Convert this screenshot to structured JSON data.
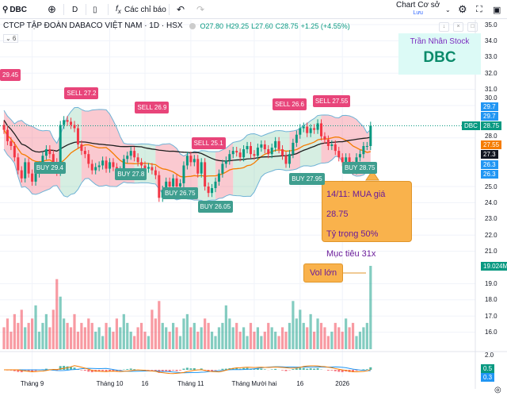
{
  "toolbar": {
    "symbol": "DBC",
    "interval": "D",
    "indicators_label": "Các chỉ báo",
    "layout_name": "Chart Cơ sở",
    "layout_status": "Lưu"
  },
  "legend": {
    "title": "CTCP TẬP ĐOÀN DABACO VIỆT NAM · 1D · HSX",
    "open": "O27.80",
    "high": "H29.25",
    "low": "L27.60",
    "close": "C28.75",
    "change": "+1.25 (+4.55%)",
    "indicator_count": "⌄ 6"
  },
  "brand": {
    "name": "Trần Nhân Stock",
    "ticker": "DBC"
  },
  "note": {
    "line1": "14/11: MUA giá 28.75",
    "line2": "Tỷ trọng 50%",
    "line3": "Mục tiêu 31x"
  },
  "vol_note": "Vol lớn",
  "price_axis": [
    "35.0",
    "34.0",
    "33.0",
    "32.0",
    "31.0",
    "30.0",
    "28.0",
    "25.0",
    "24.0",
    "23.0",
    "22.0",
    "21.0",
    "19.0",
    "18.0",
    "17.0",
    "16.0"
  ],
  "axis_tags": [
    {
      "text": "29.7",
      "price": 29.9,
      "color": "#2196f3"
    },
    {
      "text": "29.7",
      "price": 29.3,
      "color": "#2196f3"
    },
    {
      "text": "28.75",
      "price": 28.75,
      "color": "#089981",
      "symbol": "DBC"
    },
    {
      "text": "27.55",
      "price": 27.55,
      "color": "#f57c00"
    },
    {
      "text": "27.3",
      "price": 26.95,
      "color": "#131722"
    },
    {
      "text": "26.3",
      "price": 26.3,
      "color": "#2196f3"
    },
    {
      "text": "26.3",
      "price": 25.75,
      "color": "#2196f3"
    }
  ],
  "volume_tag": "19.024M",
  "macd_axis": {
    "top": "2.0",
    "tag1": "0.5",
    "tag2": "0.3"
  },
  "x_axis": [
    {
      "label": "Tháng 9",
      "i": 8
    },
    {
      "label": "Tháng 10",
      "i": 30
    },
    {
      "label": "16",
      "i": 40
    },
    {
      "label": "Tháng 11",
      "i": 53
    },
    {
      "label": "Tháng Mười hai",
      "i": 71
    },
    {
      "label": "16",
      "i": 84
    },
    {
      "label": "2026",
      "i": 96
    }
  ],
  "colors": {
    "up": "#089981",
    "down": "#f23645",
    "sell": "#e8457a",
    "buy": "#3f9e8f",
    "ma_short": "#f57c00",
    "ma_long": "#1e1e1e",
    "band": "#6fb3d6"
  },
  "chart_data": {
    "type": "candlestick",
    "closes": [
      28.5,
      27.8,
      27.5,
      26.8,
      26.0,
      25.5,
      26.5,
      25.8,
      25.3,
      25.8,
      26.3,
      26.9,
      27.3,
      27.0,
      26.5,
      25.9,
      28.8,
      29.1,
      29.0,
      28.8,
      28.6,
      27.6,
      27.2,
      27.0,
      26.4,
      26.0,
      26.2,
      26.3,
      26.6,
      26.1,
      26.5,
      26.2,
      25.8,
      26.0,
      26.7,
      26.9,
      27.2,
      26.8,
      26.5,
      26.3,
      26.1,
      26.2,
      26.0,
      25.7,
      24.3,
      24.8,
      25.3,
      25.0,
      25.5,
      25.0,
      25.2,
      26.3,
      26.9,
      26.5,
      26.7,
      25.8,
      26.5,
      25.0,
      24.6,
      24.9,
      25.3,
      25.8,
      26.4,
      26.6,
      27.0,
      27.2,
      27.1,
      26.8,
      27.3,
      27.5,
      27.0,
      26.9,
      27.4,
      27.6,
      27.3,
      27.0,
      27.4,
      27.8,
      27.3,
      26.9,
      26.4,
      27.0,
      27.7,
      28.2,
      28.6,
      28.7,
      28.3,
      28.6,
      28.5,
      28.9,
      28.1,
      27.9,
      27.5,
      27.6,
      27.2,
      26.8,
      26.5,
      26.8,
      26.3,
      26.0,
      26.8,
      27.0,
      27.5,
      27.5,
      28.75
    ],
    "volumes_m": [
      5,
      7,
      4,
      8,
      6,
      9,
      5,
      6,
      7,
      10,
      4,
      6,
      8,
      5,
      9,
      16,
      12,
      7,
      6,
      5,
      8,
      4,
      6,
      5,
      7,
      6,
      4,
      5,
      3,
      6,
      5,
      4,
      7,
      5,
      8,
      6,
      4,
      3,
      5,
      6,
      4,
      3,
      9,
      7,
      11,
      6,
      5,
      4,
      6,
      5,
      3,
      7,
      8,
      5,
      6,
      4,
      5,
      7,
      6,
      4,
      3,
      5,
      6,
      10,
      7,
      5,
      6,
      4,
      5,
      3,
      6,
      4,
      5,
      3,
      4,
      6,
      5,
      4,
      3,
      5,
      4,
      6,
      11,
      7,
      9,
      6,
      5,
      8,
      4,
      7,
      6,
      5,
      3,
      4,
      6,
      5,
      4,
      7,
      5,
      6,
      3,
      4,
      5,
      6,
      19.024
    ],
    "zones": [
      {
        "from": 0,
        "to": 15,
        "type": "sell"
      },
      {
        "from": 16,
        "to": 21,
        "type": "buy"
      },
      {
        "from": 22,
        "to": 36,
        "type": "sell"
      },
      {
        "from": 37,
        "to": 42,
        "type": "buy"
      },
      {
        "from": 43,
        "to": 54,
        "type": "sell"
      },
      {
        "from": 55,
        "to": 59,
        "type": "buy"
      },
      {
        "from": 60,
        "to": 64,
        "type": "sell"
      },
      {
        "from": 65,
        "to": 80,
        "type": "buy"
      },
      {
        "from": 81,
        "to": 83,
        "type": "sell"
      },
      {
        "from": 84,
        "to": 89,
        "type": "buy"
      },
      {
        "from": 90,
        "to": 104,
        "type": "sell"
      }
    ],
    "signals": [
      {
        "text": "29.45",
        "type": "sell",
        "i": 0,
        "price": 31.9
      },
      {
        "text": "SELL 27.2",
        "type": "sell",
        "i": 22,
        "price": 30.8
      },
      {
        "text": "SELL 26.9",
        "type": "sell",
        "i": 42,
        "price": 29.9
      },
      {
        "text": "SELL 25.1",
        "type": "sell",
        "i": 58,
        "price": 27.7
      },
      {
        "text": "SELL 26.6",
        "type": "sell",
        "i": 81,
        "price": 30.1
      },
      {
        "text": "SELL 27.55",
        "type": "sell",
        "i": 93,
        "price": 30.3
      },
      {
        "text": "BUY 29.4",
        "type": "buy",
        "i": 13,
        "price": 26.2
      },
      {
        "text": "BUY 27.8",
        "type": "buy",
        "i": 36,
        "price": 25.8
      },
      {
        "text": "BUY 26.75",
        "type": "buy",
        "i": 50,
        "price": 24.6
      },
      {
        "text": "BUY 26.05",
        "type": "buy",
        "i": 60,
        "price": 24.1
      },
      {
        "text": "BUY 27.95",
        "type": "buy",
        "i": 86,
        "price": 25.5
      },
      {
        "text": "BUY 28.75",
        "type": "buy",
        "i": 101,
        "price": 26.2
      }
    ],
    "price_range": [
      16,
      35
    ]
  }
}
